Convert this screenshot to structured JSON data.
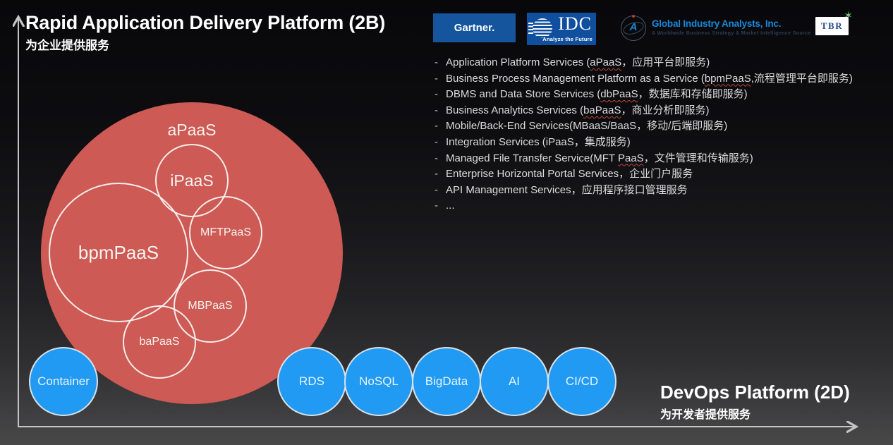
{
  "header": {
    "title": "Rapid Application Delivery Platform (2B)",
    "subtitle": "为企业提供服务"
  },
  "logos": {
    "gartner": {
      "label": "Gartner."
    },
    "idc": {
      "label": "IDC",
      "tagline": "Analyze the Future"
    },
    "gia": {
      "monogram": "A",
      "label": "Global Industry Analysts, Inc.",
      "tagline": "A Worldwide Business Strategy & Market Intelligence Source"
    },
    "tbr": {
      "label": "TBR",
      "icon": "sparkle-icon"
    }
  },
  "services_list": {
    "items": [
      {
        "text": "Application Platform Services (aPaaS，应用平台即服务)",
        "underline": "aPaaS"
      },
      {
        "text": "Business Process Management Platform as a Service (bpmPaaS,流程管理平台即服务)",
        "underline": "bpmPaaS"
      },
      {
        "text": "DBMS and Data Store Services (dbPaaS，数据库和存储即服务)",
        "underline": "dbPaaS"
      },
      {
        "text": "Business Analytics Services (baPaaS，商业分析即服务)",
        "underline": "baPaaS"
      },
      {
        "text": "Mobile/Back-End Services(MBaaS/BaaS，移动/后端即服务)"
      },
      {
        "text": "Integration Services (iPaaS，集成服务)"
      },
      {
        "text": "Managed File Transfer Service(MFT PaaS，文件管理和传输服务)",
        "underline": "PaaS"
      },
      {
        "text": "Enterprise Horizontal Portal Services，企业门户服务"
      },
      {
        "text": "API Management Services，应用程序接口管理服务"
      },
      {
        "text": "..."
      }
    ]
  },
  "venn": {
    "outer": {
      "label": "aPaaS"
    },
    "inner": [
      {
        "label": "iPaaS"
      },
      {
        "label": "bpmPaaS"
      },
      {
        "label": "MFTPaaS"
      },
      {
        "label": "MBPaaS"
      },
      {
        "label": "baPaaS"
      }
    ]
  },
  "devops": {
    "title": "DevOps Platform (2D)",
    "subtitle": "为开发者提供服务",
    "circles": [
      "Container",
      "RDS",
      "NoSQL",
      "BigData",
      "AI",
      "CI/CD"
    ]
  },
  "colors": {
    "red_circle": "#cd5a54",
    "blue_circle": "#219af3",
    "gartner_bg": "#15559e",
    "idc_bg": "#0f4f9e",
    "gia_text": "#1787d9",
    "gia_tagline": "#2c3e55",
    "tbr_text": "#274b8f",
    "sparkle_green": "#74c276",
    "axis": "#c4c4c4",
    "wavy_underline": "#b8483c"
  }
}
